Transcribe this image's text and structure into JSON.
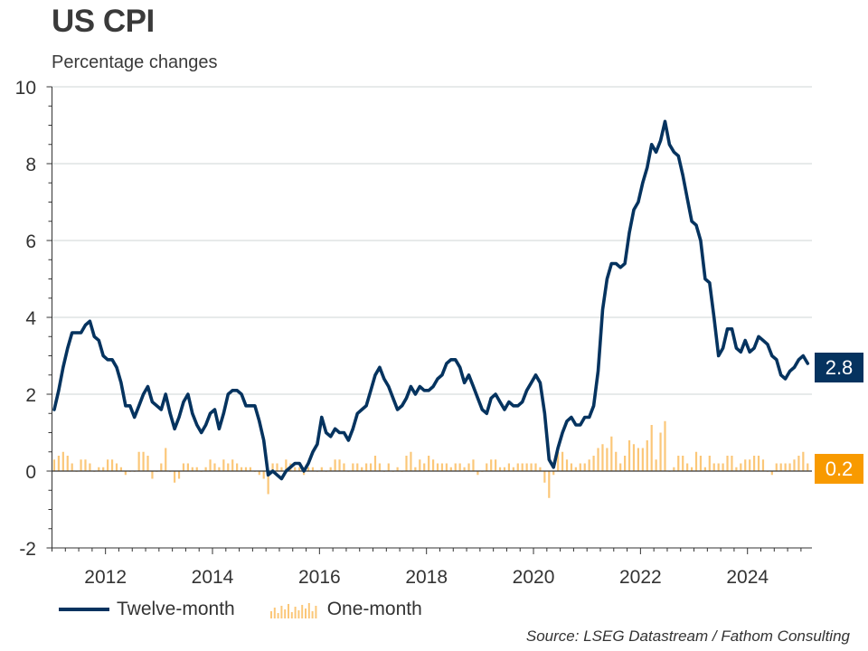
{
  "header": {
    "title": "US CPI",
    "subtitle": "Percentage changes"
  },
  "legend": {
    "twelve_month": "Twelve-month",
    "one_month": "One-month"
  },
  "source": "Source: LSEG Datastream / Fathom Consulting",
  "end_labels": {
    "twelve_month": "2.8",
    "one_month": "0.2"
  },
  "colors": {
    "twelve_month": "#05335f",
    "one_month": "#fbc779",
    "one_month_label": "#f89a00",
    "grid": "#cfd4d6",
    "axis": "#333333"
  },
  "chart_data": {
    "type": "line",
    "title": "US CPI",
    "subtitle": "Percentage changes",
    "xlabel": "",
    "ylabel": "",
    "ylim": [
      -2,
      10
    ],
    "yticks": [
      -2,
      0,
      2,
      4,
      6,
      8,
      10
    ],
    "ytick_labels": [
      "-2",
      "0",
      "2",
      "4",
      "6",
      "8",
      "10"
    ],
    "xlim": [
      "2011-01",
      "2025-03"
    ],
    "xticks": [
      2012,
      2014,
      2016,
      2018,
      2020,
      2022,
      2024
    ],
    "xtick_labels": [
      "2012",
      "2014",
      "2016",
      "2018",
      "2020",
      "2022",
      "2024"
    ],
    "grid": "horizontal",
    "legend_position": "bottom-left",
    "start": "2011-01",
    "frequency": "monthly",
    "series": [
      {
        "name": "Twelve-month",
        "type": "line",
        "values": [
          1.6,
          2.1,
          2.7,
          3.2,
          3.6,
          3.6,
          3.6,
          3.8,
          3.9,
          3.5,
          3.4,
          3.0,
          2.9,
          2.9,
          2.7,
          2.3,
          1.7,
          1.7,
          1.4,
          1.7,
          2.0,
          2.2,
          1.8,
          1.7,
          1.6,
          2.0,
          1.5,
          1.1,
          1.4,
          1.8,
          2.0,
          1.5,
          1.2,
          1.0,
          1.2,
          1.5,
          1.6,
          1.1,
          1.5,
          2.0,
          2.1,
          2.1,
          2.0,
          1.7,
          1.7,
          1.7,
          1.3,
          0.8,
          -0.1,
          0.0,
          -0.1,
          -0.2,
          0.0,
          0.1,
          0.2,
          0.2,
          0.0,
          0.2,
          0.5,
          0.7,
          1.4,
          1.0,
          0.9,
          1.1,
          1.0,
          1.0,
          0.8,
          1.1,
          1.5,
          1.6,
          1.7,
          2.1,
          2.5,
          2.7,
          2.4,
          2.2,
          1.9,
          1.6,
          1.7,
          1.9,
          2.2,
          2.0,
          2.2,
          2.1,
          2.1,
          2.2,
          2.4,
          2.5,
          2.8,
          2.9,
          2.9,
          2.7,
          2.3,
          2.5,
          2.2,
          1.9,
          1.6,
          1.5,
          1.9,
          2.0,
          1.8,
          1.6,
          1.8,
          1.7,
          1.7,
          1.8,
          2.1,
          2.3,
          2.5,
          2.3,
          1.5,
          0.3,
          0.1,
          0.6,
          1.0,
          1.3,
          1.4,
          1.2,
          1.2,
          1.4,
          1.4,
          1.7,
          2.6,
          4.2,
          5.0,
          5.4,
          5.4,
          5.3,
          5.4,
          6.2,
          6.8,
          7.0,
          7.5,
          7.9,
          8.5,
          8.3,
          8.6,
          9.1,
          8.5,
          8.3,
          8.2,
          7.7,
          7.1,
          6.5,
          6.4,
          6.0,
          5.0,
          4.9,
          4.0,
          3.0,
          3.2,
          3.7,
          3.7,
          3.2,
          3.1,
          3.4,
          3.1,
          3.2,
          3.5,
          3.4,
          3.3,
          3.0,
          2.9,
          2.5,
          2.4,
          2.6,
          2.7,
          2.9,
          3.0,
          2.8
        ]
      },
      {
        "name": "One-month",
        "type": "bar",
        "values": [
          0.3,
          0.4,
          0.5,
          0.4,
          0.2,
          0.0,
          0.3,
          0.3,
          0.2,
          0.0,
          0.1,
          0.1,
          0.3,
          0.3,
          0.2,
          0.1,
          -0.1,
          0.0,
          0.0,
          0.5,
          0.5,
          0.4,
          -0.2,
          0.0,
          0.2,
          0.6,
          0.0,
          -0.3,
          -0.2,
          0.2,
          0.2,
          0.1,
          0.1,
          0.0,
          0.1,
          0.3,
          0.2,
          0.1,
          0.3,
          0.2,
          0.3,
          0.2,
          0.1,
          0.1,
          0.1,
          0.0,
          -0.1,
          -0.2,
          -0.6,
          0.2,
          0.2,
          0.1,
          0.3,
          0.2,
          0.1,
          0.1,
          -0.1,
          0.1,
          0.1,
          0.0,
          0.1,
          0.0,
          0.1,
          0.3,
          0.3,
          0.2,
          0.0,
          0.2,
          0.2,
          0.1,
          0.2,
          0.2,
          0.4,
          0.2,
          0.0,
          0.2,
          0.0,
          0.1,
          0.0,
          0.4,
          0.5,
          0.1,
          0.3,
          0.2,
          0.4,
          0.3,
          0.2,
          0.2,
          0.2,
          0.1,
          0.2,
          0.2,
          0.1,
          0.2,
          0.3,
          -0.1,
          0.0,
          0.2,
          0.3,
          0.3,
          0.1,
          0.1,
          0.2,
          0.1,
          0.2,
          0.2,
          0.2,
          0.2,
          0.2,
          0.1,
          -0.3,
          -0.7,
          -0.1,
          0.5,
          0.5,
          0.3,
          0.2,
          0.1,
          0.2,
          0.2,
          0.3,
          0.4,
          0.6,
          0.7,
          0.6,
          0.9,
          0.5,
          0.2,
          0.4,
          0.8,
          0.7,
          0.6,
          0.6,
          0.8,
          1.2,
          0.3,
          1.0,
          1.3,
          0.0,
          0.1,
          0.4,
          0.4,
          0.2,
          0.1,
          0.5,
          0.4,
          0.1,
          0.4,
          0.2,
          0.2,
          0.2,
          0.4,
          0.4,
          0.1,
          0.2,
          0.3,
          0.3,
          0.4,
          0.4,
          0.3,
          0.0,
          -0.1,
          0.2,
          0.2,
          0.2,
          0.2,
          0.3,
          0.4,
          0.5,
          0.2
        ]
      }
    ],
    "annotations": [
      {
        "series": "Twelve-month",
        "label": "2.8"
      },
      {
        "series": "One-month",
        "label": "0.2"
      }
    ],
    "source": "Source: LSEG Datastream / Fathom Consulting"
  }
}
